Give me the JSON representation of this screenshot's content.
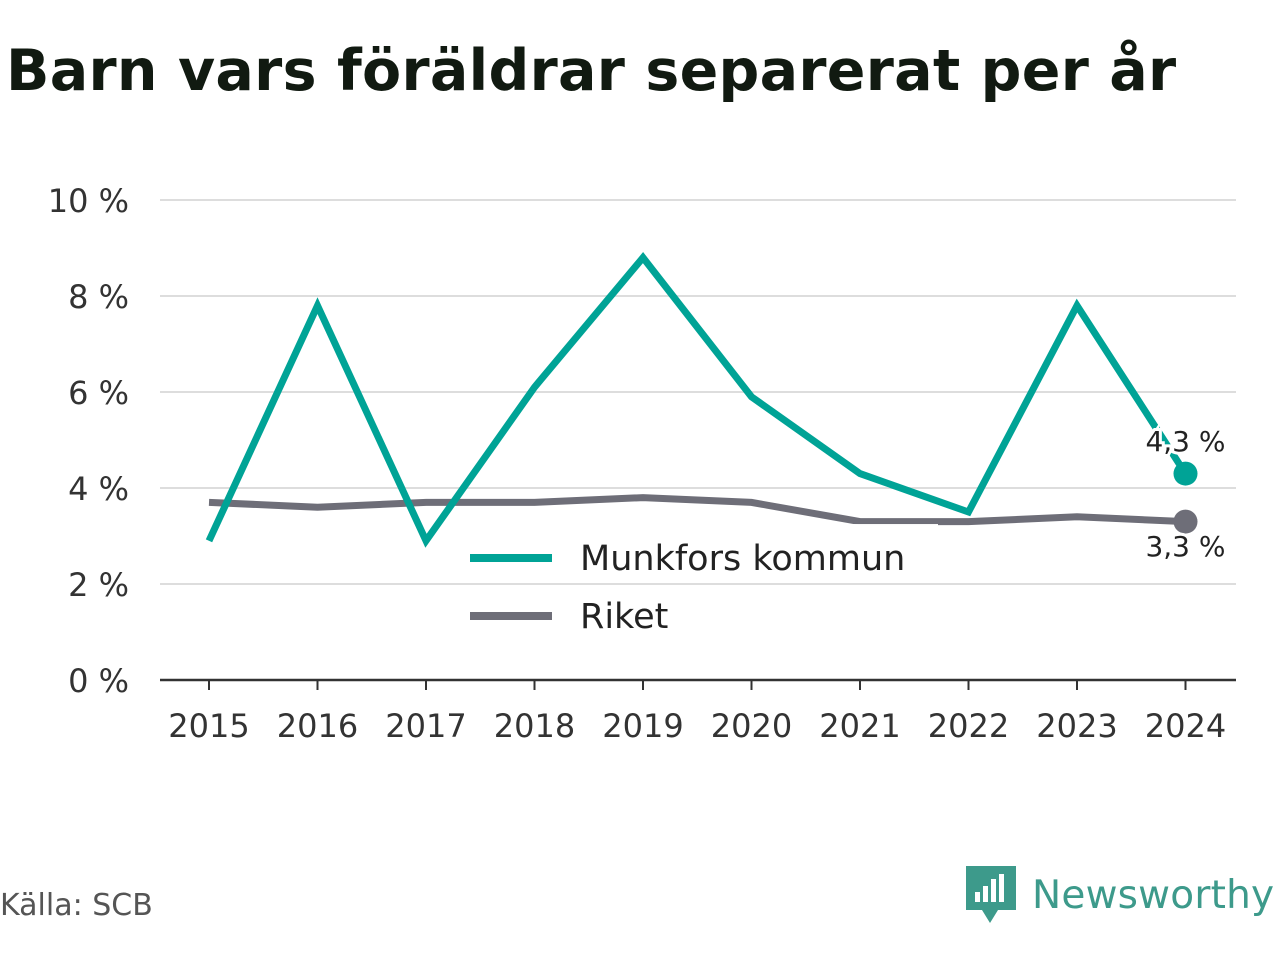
{
  "title": "Barn vars föräldrar separerat per år",
  "source": "Källa: SCB",
  "brand": {
    "name": "Newsworthy",
    "icon": "newsworthy-logo-icon",
    "color": "#3d9a8b"
  },
  "colors": {
    "munkfors": "#00a396",
    "riket": "#6e6e78",
    "grid": "#dddddd",
    "axis": "#333333",
    "text": "#333333"
  },
  "chart_data": {
    "type": "line",
    "title": "Barn vars föräldrar separerat per år",
    "x": [
      "2015",
      "2016",
      "2017",
      "2018",
      "2019",
      "2020",
      "2021",
      "2022",
      "2023",
      "2024"
    ],
    "ylim": [
      0,
      10
    ],
    "yticks": [
      0,
      2,
      4,
      6,
      8,
      10
    ],
    "ytick_labels": [
      "0 %",
      "2 %",
      "4 %",
      "6 %",
      "8 %",
      "10 %"
    ],
    "grid": true,
    "legend_position": "bottom-center",
    "series": [
      {
        "name": "Munkfors kommun",
        "values": [
          2.9,
          7.8,
          2.9,
          6.1,
          8.8,
          5.9,
          4.3,
          3.5,
          7.8,
          4.3
        ],
        "end_label": "4,3 %"
      },
      {
        "name": "Riket",
        "values": [
          3.7,
          3.6,
          3.7,
          3.7,
          3.8,
          3.7,
          3.3,
          3.3,
          3.4,
          3.3
        ],
        "end_label": "3,3 %"
      }
    ]
  }
}
